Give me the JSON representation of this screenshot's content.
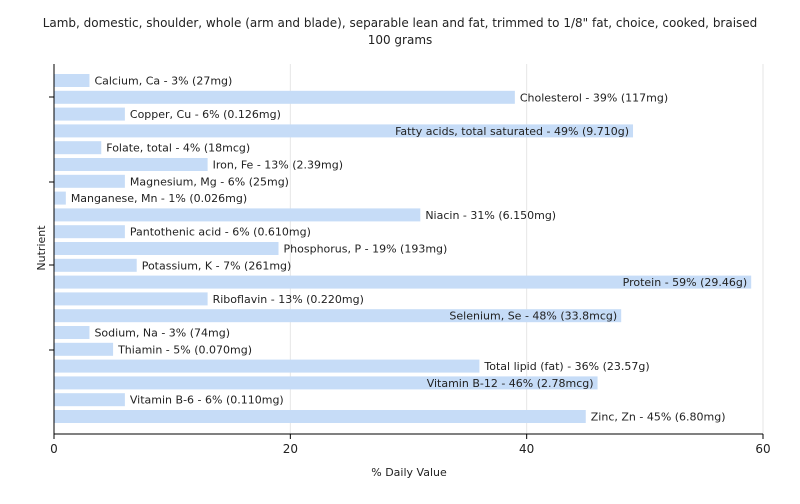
{
  "chart_data": {
    "type": "bar",
    "orientation": "horizontal",
    "title": "Lamb, domestic, shoulder, whole (arm and blade), separable lean and fat, trimmed to 1/8\" fat, choice, cooked, braised",
    "subtitle": "100 grams",
    "xlabel": "% Daily Value",
    "ylabel": "Nutrient",
    "xlim": [
      0,
      60
    ],
    "xticks": [
      0,
      20,
      40,
      60
    ],
    "grid": true,
    "bar_color": "#c6dcf7",
    "categories": [
      "Calcium, Ca",
      "Cholesterol",
      "Copper, Cu",
      "Fatty acids, total saturated",
      "Folate, total",
      "Iron, Fe",
      "Magnesium, Mg",
      "Manganese, Mn",
      "Niacin",
      "Pantothenic acid",
      "Phosphorus, P",
      "Potassium, K",
      "Protein",
      "Riboflavin",
      "Selenium, Se",
      "Sodium, Na",
      "Thiamin",
      "Total lipid (fat)",
      "Vitamin B-12",
      "Vitamin B-6",
      "Zinc, Zn"
    ],
    "values": [
      3,
      39,
      6,
      49,
      4,
      13,
      6,
      1,
      31,
      6,
      19,
      7,
      59,
      13,
      48,
      3,
      5,
      36,
      46,
      6,
      45
    ],
    "labels": [
      "Calcium, Ca - 3% (27mg)",
      "Cholesterol - 39% (117mg)",
      "Copper, Cu - 6% (0.126mg)",
      "Fatty acids, total saturated - 49% (9.710g)",
      "Folate, total - 4% (18mcg)",
      "Iron, Fe - 13% (2.39mg)",
      "Magnesium, Mg - 6% (25mg)",
      "Manganese, Mn - 1% (0.026mg)",
      "Niacin - 31% (6.150mg)",
      "Pantothenic acid - 6% (0.610mg)",
      "Phosphorus, P - 19% (193mg)",
      "Potassium, K - 7% (261mg)",
      "Protein - 59% (29.46g)",
      "Riboflavin - 13% (0.220mg)",
      "Selenium, Se - 48% (33.8mcg)",
      "Sodium, Na - 3% (74mg)",
      "Thiamin - 5% (0.070mg)",
      "Total lipid (fat) - 36% (23.57g)",
      "Vitamin B-12 - 46% (2.78mcg)",
      "Vitamin B-6 - 6% (0.110mg)",
      "Zinc, Zn - 45% (6.80mg)"
    ]
  }
}
